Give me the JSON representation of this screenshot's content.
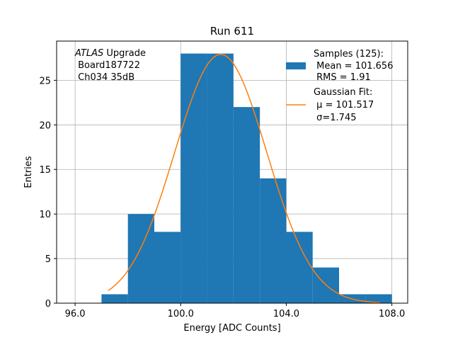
{
  "chart_data": {
    "type": "bar",
    "title": "Run 611",
    "xlabel": "Energy [ADC Counts]",
    "ylabel": "Entries",
    "xlim": [
      95.3,
      108.6
    ],
    "ylim": [
      0,
      29.4
    ],
    "xticks": [
      96,
      100,
      104,
      108
    ],
    "xtick_labels": [
      "96.0",
      "100.0",
      "104.0",
      "108.0"
    ],
    "yticks": [
      0,
      5,
      10,
      15,
      20,
      25
    ],
    "ytick_labels": [
      "0",
      "5",
      "10",
      "15",
      "20",
      "25"
    ],
    "grid": true,
    "legend_position": "top-right",
    "histogram": {
      "name": "Samples (125):",
      "stats": [
        " Mean = 101.656",
        " RMS = 1.91"
      ],
      "color": "#1f77b4",
      "bin_edges": [
        97,
        98,
        99,
        100,
        101,
        102,
        103,
        104,
        105,
        106,
        107,
        108
      ],
      "counts": [
        1,
        10,
        8,
        28,
        28,
        22,
        14,
        8,
        4,
        1,
        1
      ]
    },
    "fit": {
      "name": "Gaussian Fit:",
      "stats": [
        " μ = 101.517",
        " σ=1.745"
      ],
      "color": "#ff7f0e",
      "mu": 101.517,
      "sigma": 1.745,
      "amplitude": 27.9,
      "x_range": [
        97.25,
        107.55
      ]
    },
    "annotation": {
      "line1_italic": "ATLAS",
      "line1_rest": " Upgrade",
      "line2": " Board187722",
      "line3": " Ch034 35dB"
    }
  }
}
